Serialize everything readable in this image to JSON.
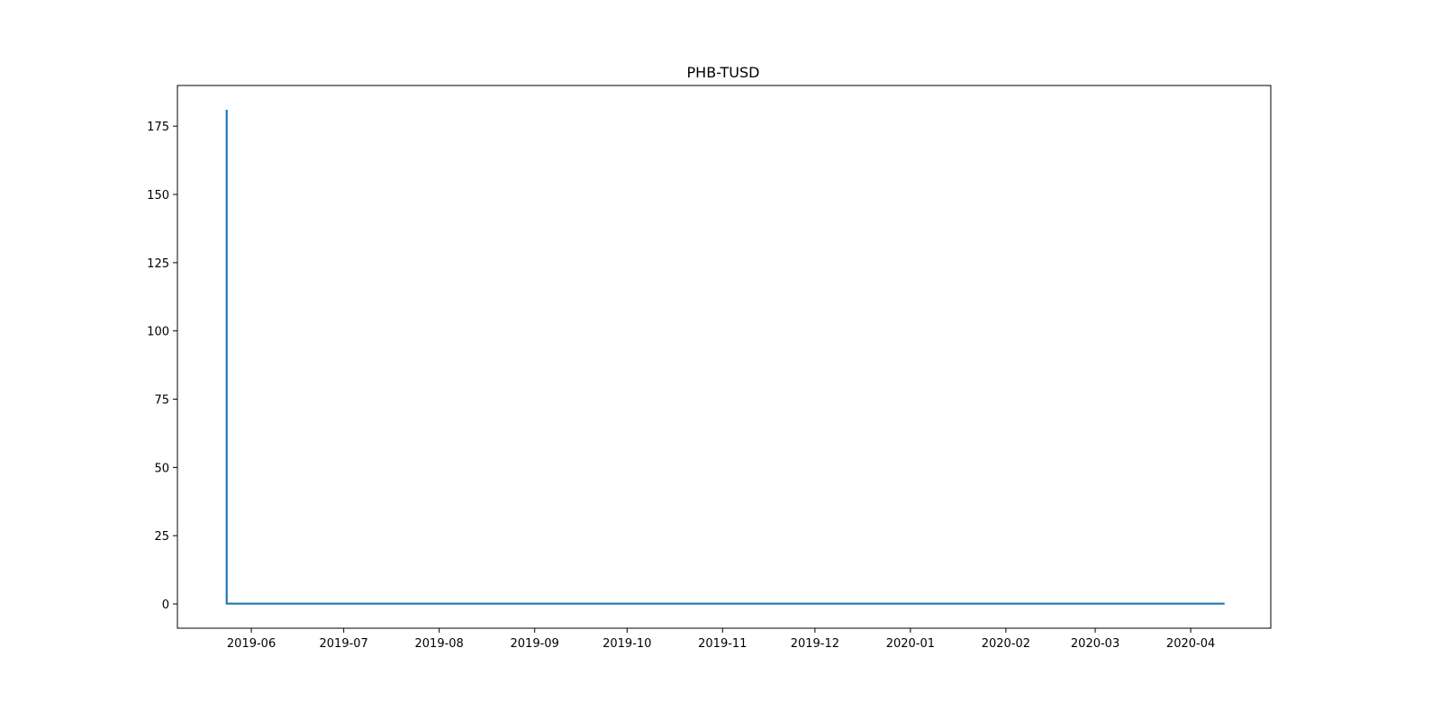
{
  "chart_data": {
    "type": "line",
    "title": "PHB-TUSD",
    "xlabel": "",
    "ylabel": "",
    "x_scale": "date",
    "xlim": [
      "2019-05-08",
      "2020-04-27"
    ],
    "ylim": [
      -8.9,
      189.9
    ],
    "x_ticks": [
      "2019-06-01",
      "2019-07-01",
      "2019-08-01",
      "2019-09-01",
      "2019-10-01",
      "2019-11-01",
      "2019-12-01",
      "2020-01-01",
      "2020-02-01",
      "2020-03-01",
      "2020-04-01"
    ],
    "x_tick_labels": [
      "2019-06",
      "2019-07",
      "2019-08",
      "2019-09",
      "2019-10",
      "2019-11",
      "2019-12",
      "2020-01",
      "2020-02",
      "2020-03",
      "2020-04"
    ],
    "y_ticks": [
      0,
      25,
      50,
      75,
      100,
      125,
      150,
      175
    ],
    "y_tick_labels": [
      "0",
      "25",
      "50",
      "75",
      "100",
      "125",
      "150",
      "175"
    ],
    "grid": false,
    "legend": "none",
    "series": [
      {
        "color": "#1f77b4",
        "x": [
          "2019-05-24",
          "2019-05-24",
          "2019-06-15",
          "2019-08-01",
          "2019-10-01",
          "2019-12-01",
          "2020-02-01",
          "2020-04-12"
        ],
        "y": [
          181,
          0.1,
          0.1,
          0.1,
          0.1,
          0.1,
          0.1,
          0.1
        ]
      }
    ]
  }
}
